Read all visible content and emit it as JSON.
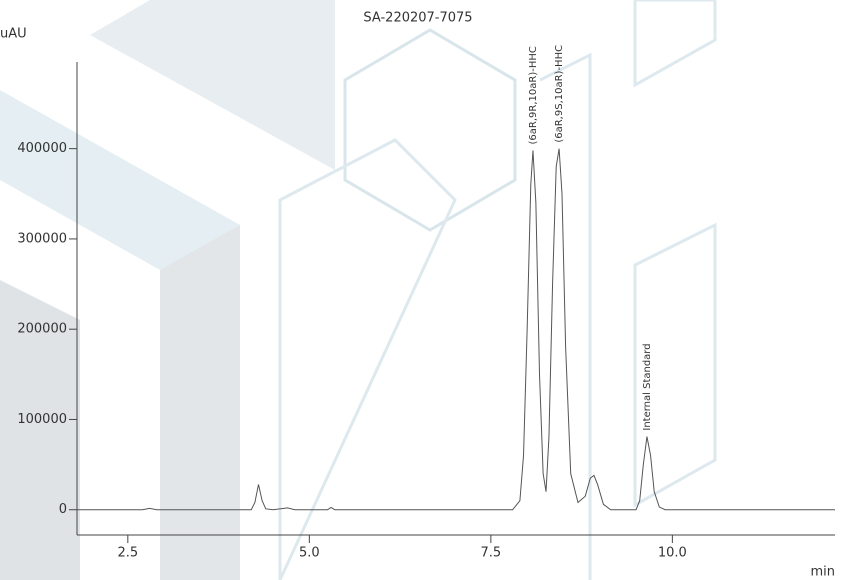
{
  "chart_data": {
    "type": "line",
    "title": "SA-220207-7075",
    "y_label": "uAU",
    "x_label": "min",
    "x": [
      1.8,
      2.0,
      2.7,
      2.8,
      2.9,
      4.2,
      4.25,
      4.3,
      4.35,
      4.4,
      4.5,
      4.7,
      4.8,
      5.25,
      5.3,
      5.35,
      7.8,
      7.9,
      7.95,
      8.0,
      8.05,
      8.08,
      8.12,
      8.17,
      8.22,
      8.26,
      8.3,
      8.35,
      8.4,
      8.44,
      8.48,
      8.53,
      8.6,
      8.7,
      8.8,
      8.87,
      8.92,
      8.97,
      9.05,
      9.15,
      9.5,
      9.55,
      9.6,
      9.65,
      9.7,
      9.75,
      9.82,
      9.9,
      12.24
    ],
    "values": [
      0,
      0,
      0,
      1500,
      0,
      0,
      8000,
      28000,
      10000,
      1000,
      0,
      2000,
      0,
      0,
      2500,
      0,
      0,
      10000,
      60000,
      200000,
      360000,
      398000,
      340000,
      150000,
      40000,
      20000,
      80000,
      250000,
      380000,
      400000,
      350000,
      180000,
      40000,
      8000,
      15000,
      35000,
      38000,
      28000,
      6000,
      0,
      0,
      10000,
      50000,
      81000,
      60000,
      20000,
      3000,
      0,
      0
    ],
    "color": "#555555",
    "xlim": [
      1.8,
      12.24
    ],
    "ylim": [
      -28000,
      496000
    ],
    "xticks": [
      2.5,
      {
        "value": 5,
        "label": "5.0"
      },
      7.5,
      {
        "value": 10,
        "label": "10.0"
      }
    ],
    "yticks": [
      0,
      100000,
      200000,
      300000,
      400000
    ],
    "annotations": [
      {
        "text": "(6aR,9R,10aR)-HHC",
        "x": 8.08
      },
      {
        "text": "(6aR,9S,10aR)-HHC",
        "x": 8.44
      },
      {
        "text": "Internal Standard",
        "x": 9.65
      }
    ]
  }
}
